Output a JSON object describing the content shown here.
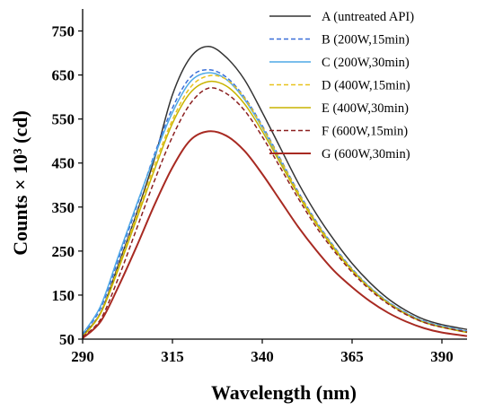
{
  "chart_data": {
    "type": "line",
    "title": "",
    "xlabel": "Wavelength  (nm)",
    "ylabel": "Counts × 10³ (cd)",
    "xlim": [
      290,
      397
    ],
    "ylim": [
      50,
      800
    ],
    "xticks": [
      "290",
      "315",
      "340",
      "365",
      "390"
    ],
    "yticks": [
      "50",
      "150",
      "250",
      "350",
      "450",
      "550",
      "650",
      "750"
    ],
    "grid": false,
    "legend_position": "top-right",
    "series": [
      {
        "name": "A (untreated API)",
        "color": "#333333",
        "dash": "solid",
        "x": [
          290,
          295,
          300,
          305,
          310,
          315,
          320,
          325,
          330,
          335,
          340,
          345,
          350,
          355,
          360,
          365,
          370,
          375,
          380,
          385,
          390,
          397
        ],
        "y": [
          58,
          110,
          220,
          335,
          460,
          605,
          690,
          715,
          690,
          640,
          565,
          485,
          405,
          335,
          275,
          222,
          178,
          142,
          115,
          95,
          83,
          72
        ]
      },
      {
        "name": "B (200W,15min)",
        "color": "#3a6fd8",
        "dash": "dashed",
        "x": [
          290,
          295,
          300,
          305,
          310,
          315,
          320,
          325,
          330,
          335,
          340,
          345,
          350,
          355,
          360,
          365,
          370,
          375,
          380,
          385,
          390,
          397
        ],
        "y": [
          60,
          120,
          232,
          350,
          470,
          575,
          645,
          662,
          645,
          600,
          535,
          460,
          385,
          318,
          260,
          210,
          168,
          135,
          110,
          91,
          80,
          68
        ]
      },
      {
        "name": "C (200W,30min)",
        "color": "#4fa9e6",
        "dash": "solid",
        "x": [
          290,
          295,
          300,
          305,
          310,
          315,
          320,
          325,
          330,
          335,
          340,
          345,
          350,
          355,
          360,
          365,
          370,
          375,
          380,
          385,
          390,
          397
        ],
        "y": [
          62,
          125,
          240,
          355,
          465,
          565,
          635,
          655,
          640,
          595,
          530,
          455,
          380,
          315,
          258,
          208,
          167,
          134,
          109,
          90,
          79,
          67
        ]
      },
      {
        "name": "D (400W,15min)",
        "color": "#e8c21c",
        "dash": "dashed",
        "x": [
          290,
          295,
          300,
          305,
          310,
          315,
          320,
          325,
          330,
          335,
          340,
          345,
          350,
          355,
          360,
          365,
          370,
          375,
          380,
          385,
          390,
          397
        ],
        "y": [
          56,
          110,
          215,
          330,
          445,
          548,
          622,
          648,
          640,
          598,
          532,
          458,
          383,
          316,
          258,
          208,
          166,
          133,
          108,
          89,
          78,
          66
        ]
      },
      {
        "name": "E (400W,30min)",
        "color": "#c8b400",
        "dash": "solid",
        "x": [
          290,
          295,
          300,
          305,
          310,
          315,
          320,
          325,
          330,
          335,
          340,
          345,
          350,
          355,
          360,
          365,
          370,
          375,
          380,
          385,
          390,
          397
        ],
        "y": [
          55,
          108,
          210,
          322,
          435,
          540,
          610,
          635,
          625,
          585,
          522,
          450,
          378,
          312,
          255,
          206,
          165,
          132,
          107,
          88,
          77,
          65
        ]
      },
      {
        "name": "F (600W,15min)",
        "color": "#8b2020",
        "dash": "dashed",
        "x": [
          290,
          295,
          300,
          305,
          310,
          315,
          320,
          325,
          330,
          335,
          340,
          345,
          350,
          355,
          360,
          365,
          370,
          375,
          380,
          385,
          390,
          397
        ],
        "y": [
          55,
          95,
          190,
          300,
          410,
          510,
          585,
          620,
          608,
          570,
          510,
          440,
          370,
          305,
          250,
          202,
          162,
          130,
          106,
          88,
          77,
          66
        ]
      },
      {
        "name": "G (600W,30min)",
        "color": "#a82a22",
        "dash": "solid",
        "x": [
          290,
          295,
          300,
          305,
          310,
          315,
          320,
          325,
          330,
          335,
          340,
          345,
          350,
          355,
          360,
          365,
          370,
          375,
          380,
          385,
          390,
          397
        ],
        "y": [
          52,
          90,
          170,
          260,
          355,
          440,
          502,
          522,
          512,
          478,
          425,
          365,
          305,
          252,
          205,
          168,
          136,
          110,
          90,
          75,
          65,
          57
        ]
      }
    ]
  }
}
